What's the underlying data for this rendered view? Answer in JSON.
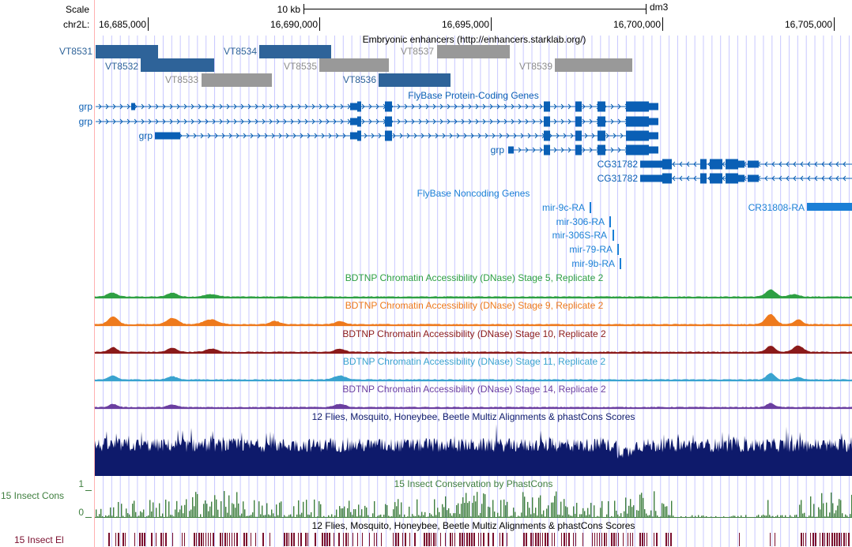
{
  "header": {
    "scale_label": "Scale",
    "scale_value": "10 kb",
    "assembly": "dm3",
    "chrom_label": "chr2L:",
    "ticks": [
      "16,685,000",
      "16,690,000",
      "16,695,000",
      "16,700,000",
      "16,705,000"
    ]
  },
  "colors": {
    "enhancer_dark": "#2e6399",
    "enhancer_grey": "#999999",
    "enhancer_grey_label": "#8c8c8c",
    "gene_blue": "#0a5fb5",
    "noncoding_blue": "#1a7fd6",
    "dnase_stage5": "#2ea043",
    "dnase_stage9": "#ee7a1d",
    "dnase_stage10": "#8b1a1a",
    "dnase_stage11": "#3aa3cf",
    "dnase_stage14": "#6b3fa0",
    "multiz": "#0e1a6b",
    "phastcons": "#3f7f3f",
    "elements": "#7a0f2e",
    "guide_line": "#c8c8ff",
    "left_rule": "#ffb0b0"
  },
  "enhancers": {
    "track_title": "Embryonic enhancers (http://enhancers.starklab.org/)",
    "items": [
      {
        "name": "VT8531",
        "style": "dark"
      },
      {
        "name": "VT8532",
        "style": "dark"
      },
      {
        "name": "VT8533",
        "style": "grey"
      },
      {
        "name": "VT8534",
        "style": "dark"
      },
      {
        "name": "VT8535",
        "style": "grey"
      },
      {
        "name": "VT8536",
        "style": "dark"
      },
      {
        "name": "VT8537",
        "style": "grey"
      },
      {
        "name": "VT8539",
        "style": "grey"
      }
    ]
  },
  "coding_genes": {
    "track_title": "FlyBase Protein-Coding Genes",
    "items": [
      {
        "name": "grp",
        "strand": "+"
      },
      {
        "name": "grp",
        "strand": "+"
      },
      {
        "name": "grp",
        "strand": "+"
      },
      {
        "name": "grp",
        "strand": "+"
      },
      {
        "name": "CG31782",
        "strand": "-"
      },
      {
        "name": "CG31782",
        "strand": "-"
      }
    ]
  },
  "noncoding_genes": {
    "track_title": "FlyBase Noncoding Genes",
    "items": [
      "mir-9c-RA",
      "mir-306-RA",
      "mir-306S-RA",
      "mir-79-RA",
      "mir-9b-RA",
      "CR31808-RA"
    ]
  },
  "dnase_tracks": [
    {
      "title": "BDTNP Chromatin Accessibility (DNase) Stage 5, Replicate 2",
      "color_key": "dnase_stage5"
    },
    {
      "title": "BDTNP Chromatin Accessibility (DNase) Stage 9, Replicate 2",
      "color_key": "dnase_stage9"
    },
    {
      "title": "BDTNP Chromatin Accessibility (DNase) Stage 10, Replicate 2",
      "color_key": "dnase_stage10"
    },
    {
      "title": "BDTNP Chromatin Accessibility (DNase) Stage 11, Replicate 2",
      "color_key": "dnase_stage11"
    },
    {
      "title": "BDTNP Chromatin Accessibility (DNase) Stage 14, Replicate 2",
      "color_key": "dnase_stage14"
    }
  ],
  "multiz": {
    "title": "12 Flies, Mosquito, Honeybee, Beetle Multiz Alignments & phastCons Scores"
  },
  "phastcons": {
    "title": "15 Insect Conservation by PhastCons",
    "side_label": "15 Insect Cons",
    "axis_max": "1",
    "axis_min": "0"
  },
  "elements": {
    "title": "12 Flies, Mosquito, Honeybee, Beetle Multiz Alignments & phastCons Scores",
    "side_label": "15 Insect El"
  }
}
